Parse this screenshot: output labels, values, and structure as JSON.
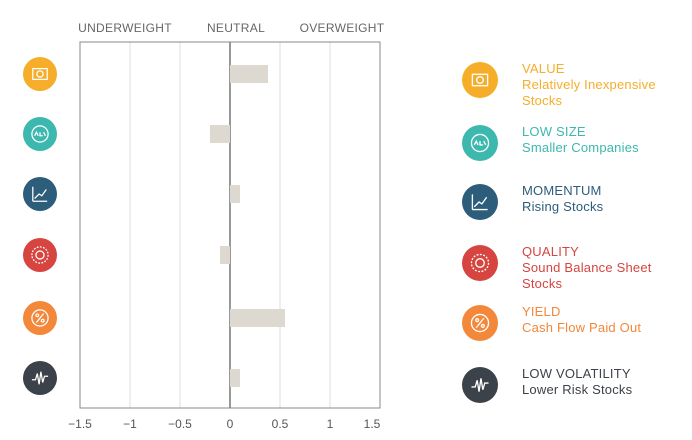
{
  "chart_data": {
    "type": "bar",
    "orientation": "horizontal",
    "annotations": [
      "UNDERWEIGHT",
      "NEUTRAL",
      "OVERWEIGHT"
    ],
    "categories": [
      "VALUE",
      "LOW SIZE",
      "MOMENTUM",
      "QUALITY",
      "YIELD",
      "LOW VOLATILITY"
    ],
    "descriptions": [
      "Relatively Inexpensive Stocks",
      "Smaller Companies",
      "Rising Stocks",
      "Sound Balance Sheet Stocks",
      "Cash Flow Paid Out",
      "Lower Risk Stocks"
    ],
    "category_colors": [
      "#f5ad2a",
      "#3cb8ae",
      "#2c5d7a",
      "#d6453f",
      "#f3873a",
      "#3c4249"
    ],
    "values": [
      0.38,
      -0.2,
      0.1,
      -0.1,
      0.55,
      0.1
    ],
    "color": "#ddd8d0",
    "xlim": [
      -1.5,
      1.5
    ],
    "xticks": [
      {
        "value": -1.5,
        "label": "−1.5"
      },
      {
        "value": -1,
        "label": "−1"
      },
      {
        "value": -0.5,
        "label": "−0.5"
      },
      0,
      0.5,
      1,
      1.5
    ],
    "grid": true,
    "legend": "right"
  }
}
